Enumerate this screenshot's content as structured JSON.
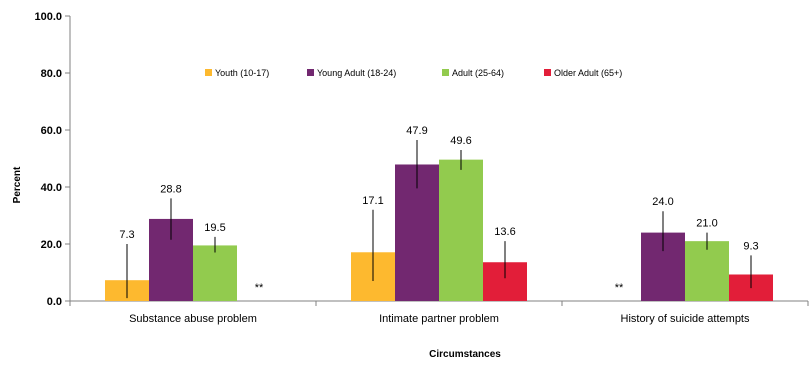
{
  "chart_data": {
    "type": "bar",
    "title": "",
    "xlabel": "Circumstances",
    "ylabel": "Percent",
    "ylim": [
      0,
      100
    ],
    "yticks": [
      "0.0",
      "20.0",
      "40.0",
      "60.0",
      "80.0",
      "100.0"
    ],
    "grid": false,
    "legend_position": "top-center",
    "categories": [
      "Substance abuse problem",
      "Intimate partner problem",
      "History of suicide attempts"
    ],
    "series": [
      {
        "name": "Youth (10-17)",
        "color": "#FDB92F",
        "values": [
          7.3,
          17.1,
          null
        ],
        "value_labels": [
          "7.3",
          "17.1",
          "**"
        ],
        "error_low": [
          1.0,
          7.0,
          null
        ],
        "error_high": [
          20.0,
          32.0,
          null
        ]
      },
      {
        "name": "Young Adult (18-24)",
        "color": "#722870",
        "values": [
          28.8,
          47.9,
          24.0
        ],
        "value_labels": [
          "28.8",
          "47.9",
          "24.0"
        ],
        "error_low": [
          21.5,
          39.5,
          17.5
        ],
        "error_high": [
          36.0,
          56.5,
          31.5
        ]
      },
      {
        "name": "Adult (25-64)",
        "color": "#92CB4E",
        "values": [
          19.5,
          49.6,
          21.0
        ],
        "value_labels": [
          "19.5",
          "49.6",
          "21.0"
        ],
        "error_low": [
          17.0,
          46.0,
          18.0
        ],
        "error_high": [
          22.5,
          53.0,
          24.0
        ]
      },
      {
        "name": "Older Adult (65+)",
        "color": "#E21E39",
        "values": [
          null,
          13.6,
          9.3
        ],
        "value_labels": [
          "**",
          "13.6",
          "9.3"
        ],
        "error_low": [
          null,
          8.0,
          4.5
        ],
        "error_high": [
          null,
          21.0,
          16.0
        ]
      }
    ]
  }
}
